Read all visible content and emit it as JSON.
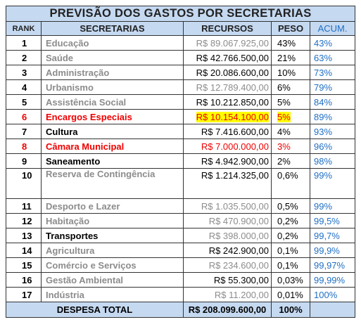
{
  "title": "PREVISÃO DOS GASTOS POR SECRETARIAS",
  "table": {
    "header": [
      "RANK",
      "SECRETARIAS",
      "RECURSOS",
      "PESO",
      "ACUM."
    ],
    "rows": [
      [
        "1",
        "Educação",
        "R$ 89.067.925,00",
        "43%",
        "43%"
      ],
      [
        "2",
        "Saúde",
        "R$ 42.766.500,00",
        "21%",
        "63%"
      ],
      [
        "3",
        "Administração",
        "R$ 20.086.600,00",
        "10%",
        "73%"
      ],
      [
        "4",
        "Urbanismo",
        "R$ 12.789.400,00",
        "6%",
        "79%"
      ],
      [
        "5",
        "Assistência Social",
        "R$ 10.212.850,00",
        "5%",
        "84%"
      ],
      [
        "6",
        "Encargos Especiais",
        "R$ 10.154.100,00",
        "5%",
        "89%"
      ],
      [
        "7",
        "Cultura",
        "R$ 7.416.600,00",
        "4%",
        "93%"
      ],
      [
        "8",
        "Câmara Municipal",
        "R$ 7.000.000,00",
        "3%",
        "96%"
      ],
      [
        "9",
        "Saneamento",
        "R$ 4.942.900,00",
        "2%",
        "98%"
      ],
      [
        "10",
        "Reserva de Contingência",
        "R$ 1.214.325,00",
        "0,6%",
        "99%"
      ],
      [
        "11",
        "Desporto e Lazer",
        "R$ 1.035.500,00",
        "0,5%",
        "99%"
      ],
      [
        "12",
        "Habitação",
        "R$ 470.900,00",
        "0,2%",
        "99,5%"
      ],
      [
        "13",
        "Transportes",
        "R$ 398.000,00",
        "0,2%",
        "99,7%"
      ],
      [
        "14",
        "Agricultura",
        "R$ 242.900,00",
        "0,1%",
        "99,9%"
      ],
      [
        "15",
        "Comércio e Serviços",
        "R$ 234.600,00",
        "0,1%",
        "99,97%"
      ],
      [
        "16",
        "Gestão Ambiental",
        "R$ 55.300,00",
        "0,03%",
        "99,99%"
      ],
      [
        "17",
        "Indústria",
        "R$ 11.200,00",
        "0,01%",
        "100%"
      ]
    ],
    "total": [
      "DESPESA TOTAL",
      "R$ 208.099.600,00",
      "100%"
    ]
  }
}
